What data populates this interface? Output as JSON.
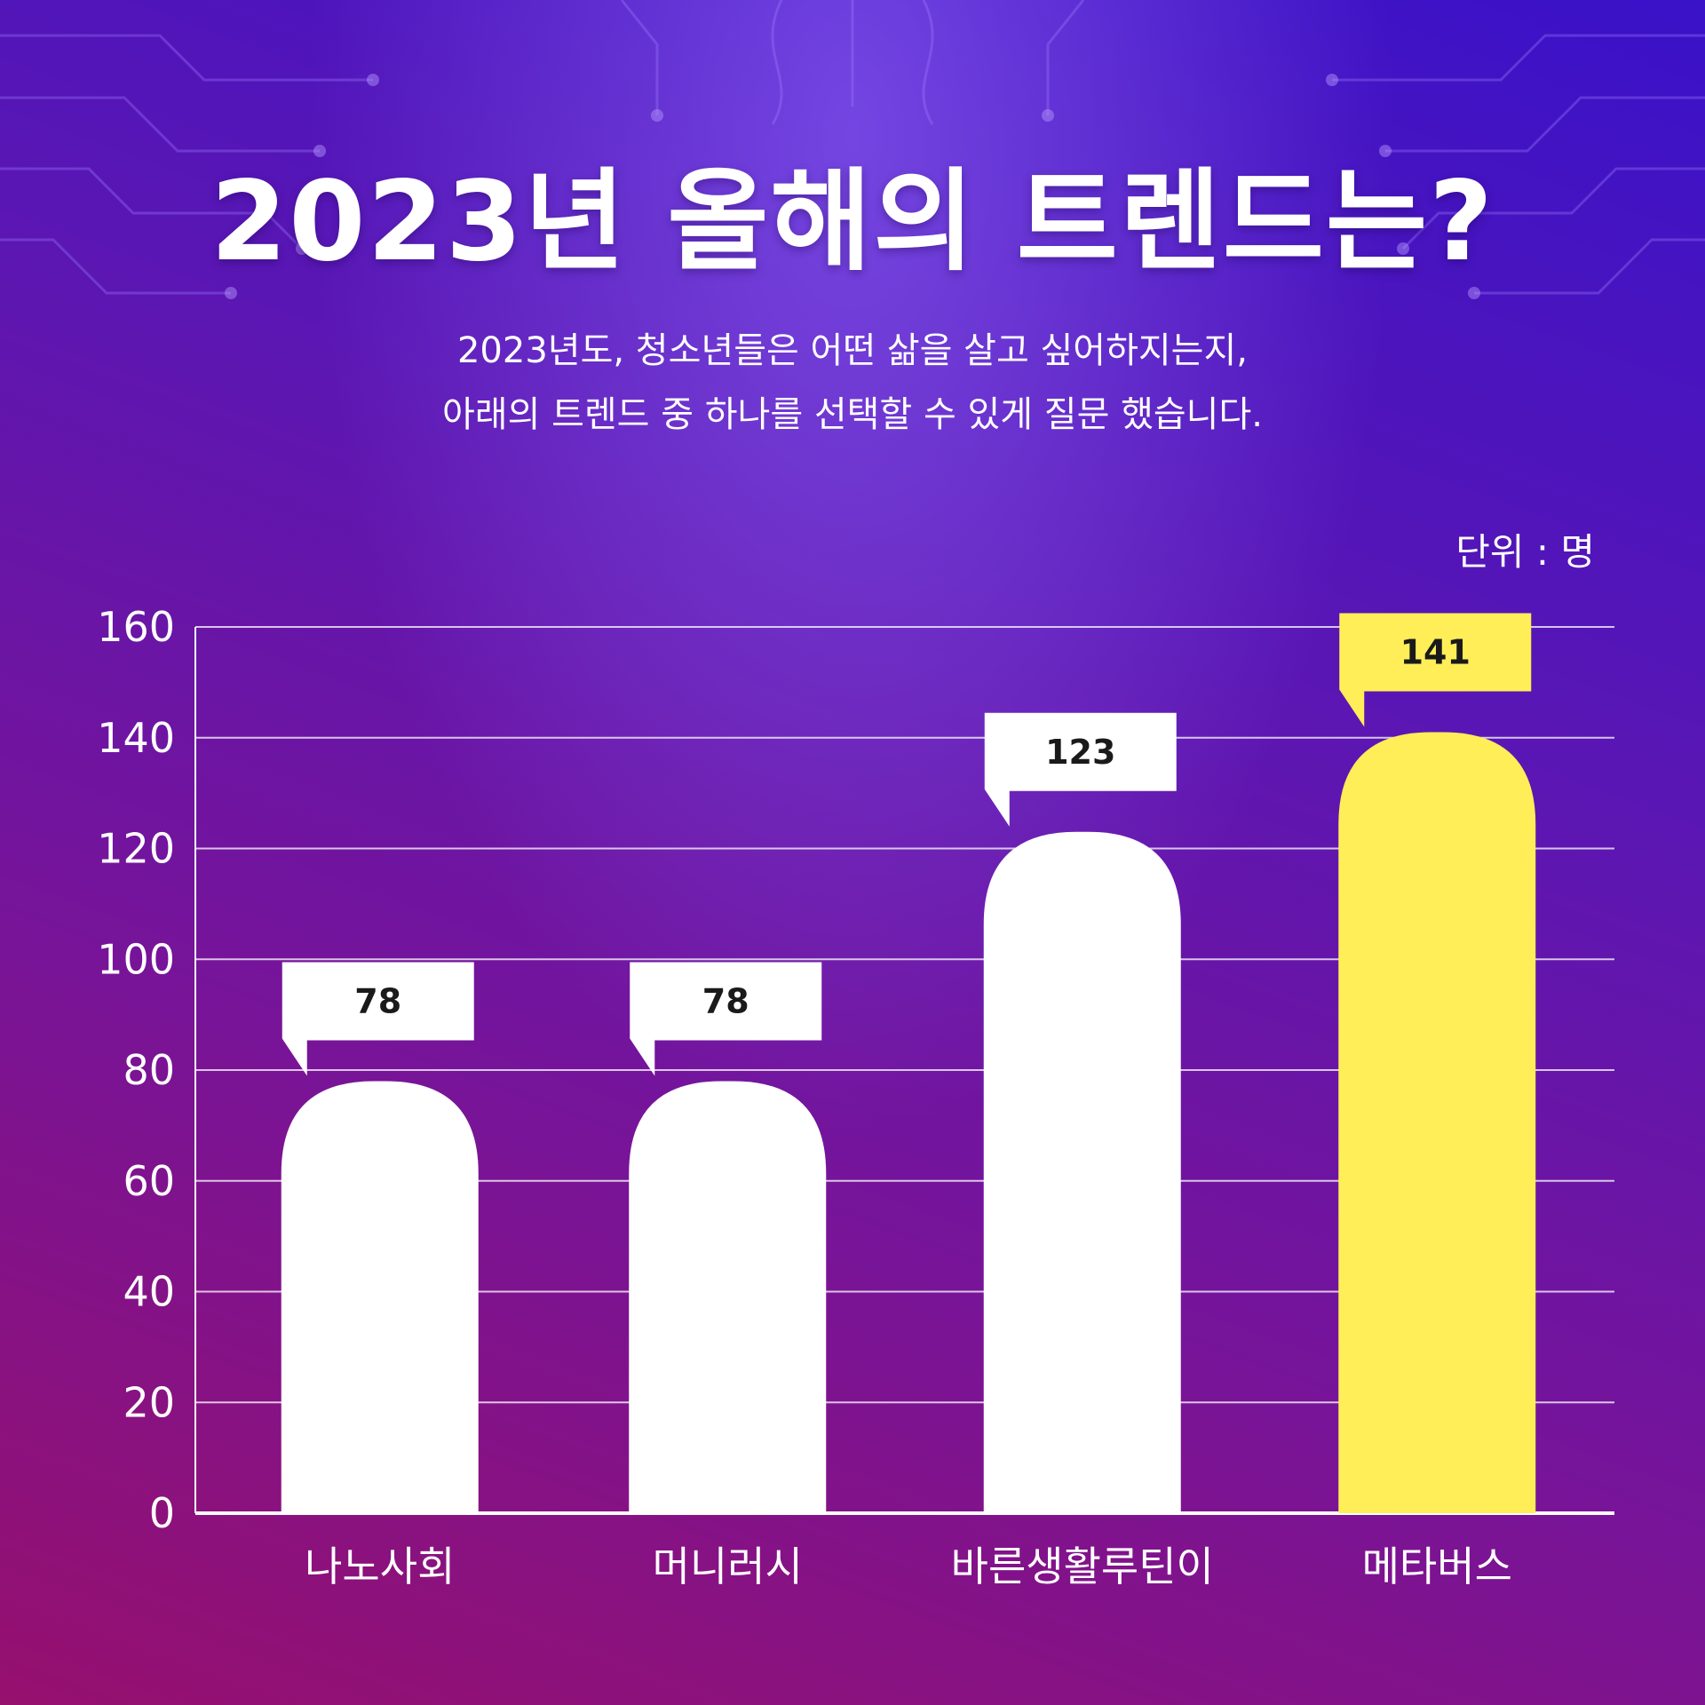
{
  "header": {
    "title": "2023년 올해의 트렌드는?",
    "subtitle_line1": "2023년도, 청소년들은 어떤 삶을 살고 싶어하지는지,",
    "subtitle_line2": "아래의 트렌드 중 하나를 선택할 수 있게 질문 했습니다.",
    "unit_label": "단위 : 명"
  },
  "colors": {
    "bar_default": "#ffffff",
    "bar_highlight": "#ffee58",
    "grid": "#ffffff"
  },
  "chart_data": {
    "type": "bar",
    "title": "2023년 올해의 트렌드는?",
    "xlabel": "",
    "ylabel": "",
    "unit": "명",
    "categories": [
      "나노사회",
      "머니러시",
      "바른생활루틴이",
      "메타버스"
    ],
    "values": [
      78,
      78,
      123,
      141
    ],
    "value_labels": [
      "78",
      "78",
      "123",
      "141"
    ],
    "highlight_index": 3,
    "ylim": [
      0,
      160
    ],
    "yticks": [
      0,
      20,
      40,
      60,
      80,
      100,
      120,
      140,
      160
    ],
    "grid": true,
    "legend": "none"
  }
}
